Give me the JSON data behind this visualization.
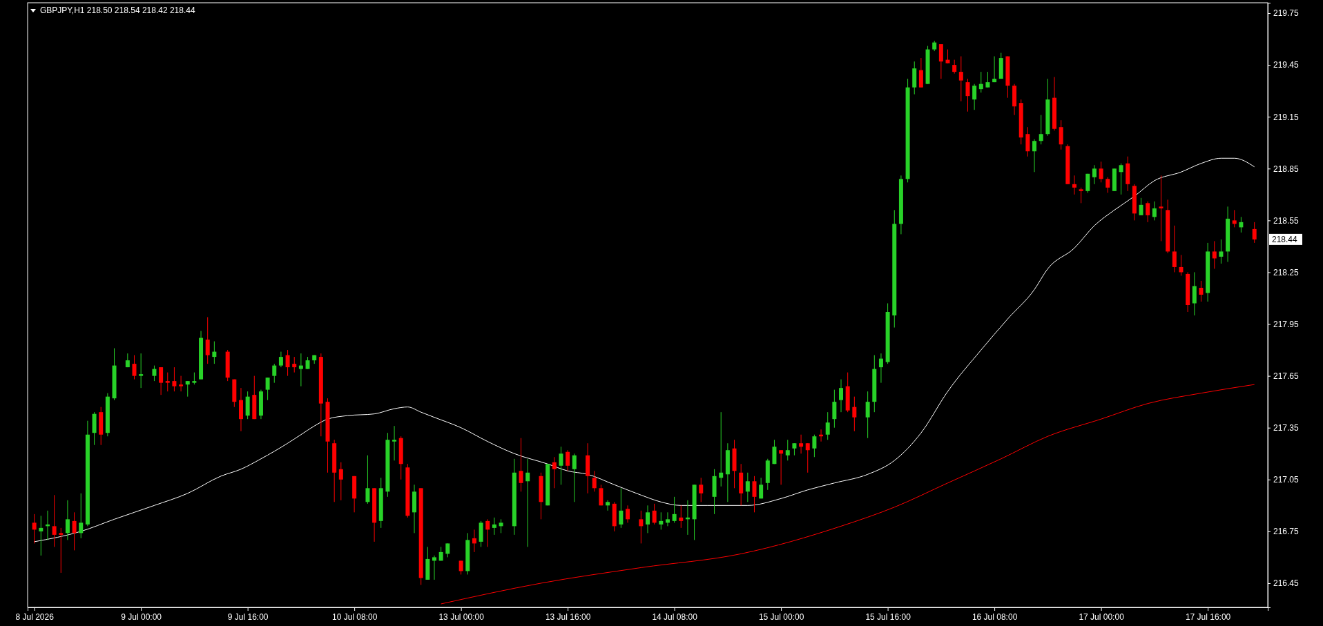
{
  "chart_data": {
    "type": "candlestick",
    "title": "GBPJPY,H1 218.50 218.54 218.42 218.44",
    "categories": [
      "8 Jul 2026",
      null,
      null,
      null,
      null,
      null,
      null,
      null,
      null,
      null,
      null,
      null,
      null,
      null,
      null,
      null,
      "9 Jul 00:00",
      null,
      null,
      null,
      null,
      null,
      null,
      null,
      null,
      null,
      null,
      null,
      null,
      null,
      null,
      null,
      "9 Jul 16:00",
      null,
      null,
      null,
      null,
      null,
      null,
      null,
      null,
      null,
      null,
      null,
      null,
      null,
      null,
      null,
      "10 Jul 08:00",
      null,
      null,
      null,
      null,
      null,
      null,
      null,
      null,
      null,
      null,
      null,
      null,
      null,
      null,
      null,
      "13 Jul 00:00",
      null,
      null,
      null,
      null,
      null,
      null,
      null,
      null,
      null,
      null,
      null,
      null,
      null,
      null,
      null,
      "13 Jul 16:00",
      null,
      null,
      null,
      null,
      null,
      null,
      null,
      null,
      null,
      null,
      null,
      null,
      null,
      null,
      null,
      "14 Jul 08:00",
      null,
      null,
      null,
      null,
      null,
      null,
      null,
      null,
      null,
      null,
      null,
      null,
      null,
      null,
      null,
      "15 Jul 00:00",
      null,
      null,
      null,
      null,
      null,
      null,
      null,
      null,
      null,
      null,
      null,
      null,
      null,
      null,
      null,
      "15 Jul 16:00",
      null,
      null,
      null,
      null,
      null,
      null,
      null,
      null,
      null,
      null,
      null,
      null,
      null,
      null,
      null,
      "16 Jul 08:00",
      null,
      null,
      null,
      null,
      null,
      null,
      null,
      null,
      null,
      null,
      null,
      null,
      null,
      null,
      null,
      "17 Jul 00:00",
      null,
      null,
      null,
      null,
      null,
      null,
      null,
      null,
      null,
      null,
      null,
      null,
      null,
      null,
      null,
      "17 Jul 16:00",
      null,
      null,
      null,
      null,
      null,
      null,
      null
    ],
    "ohlc": [
      [
        216.8,
        216.85,
        216.68,
        216.76
      ],
      [
        216.75,
        216.84,
        216.61,
        216.77
      ],
      [
        216.78,
        216.87,
        216.7,
        216.79
      ],
      [
        216.78,
        216.96,
        216.66,
        216.73
      ],
      [
        216.74,
        216.77,
        216.51,
        216.73
      ],
      [
        216.74,
        216.93,
        216.7,
        216.82
      ],
      [
        216.81,
        216.86,
        216.64,
        216.74
      ],
      [
        216.74,
        216.97,
        216.71,
        216.8
      ],
      [
        216.79,
        217.39,
        216.78,
        217.31
      ],
      [
        217.32,
        217.44,
        217.25,
        217.43
      ],
      [
        217.44,
        217.47,
        217.25,
        217.31
      ],
      [
        217.32,
        217.55,
        217.3,
        217.53
      ],
      [
        217.52,
        217.81,
        217.51,
        217.71
      ],
      null,
      [
        217.7,
        217.78,
        217.7,
        217.74
      ],
      [
        217.72,
        217.77,
        217.63,
        217.65
      ],
      [
        217.65,
        217.78,
        217.58,
        217.66
      ],
      null,
      [
        217.65,
        217.71,
        217.62,
        217.69
      ],
      [
        217.7,
        217.7,
        217.54,
        217.61
      ],
      [
        217.62,
        217.67,
        217.56,
        217.61
      ],
      [
        217.62,
        217.7,
        217.56,
        217.59
      ],
      [
        217.6,
        217.65,
        217.56,
        217.59
      ],
      [
        217.6,
        217.62,
        217.53,
        217.62
      ],
      [
        217.61,
        217.67,
        217.6,
        217.62
      ],
      [
        217.63,
        217.91,
        217.63,
        217.87
      ],
      [
        217.86,
        217.99,
        217.72,
        217.77
      ],
      [
        217.76,
        217.85,
        217.72,
        217.79
      ],
      null,
      [
        217.79,
        217.8,
        217.62,
        217.64
      ],
      [
        217.63,
        217.63,
        217.47,
        217.5
      ],
      [
        217.51,
        217.58,
        217.33,
        217.4
      ],
      [
        217.42,
        217.56,
        217.4,
        217.53
      ],
      [
        217.54,
        217.65,
        217.4,
        217.4
      ],
      [
        217.42,
        217.57,
        217.4,
        217.56
      ],
      [
        217.57,
        217.64,
        217.51,
        217.64
      ],
      [
        217.65,
        217.72,
        217.61,
        217.71
      ],
      [
        217.71,
        217.79,
        217.7,
        217.76
      ],
      [
        217.77,
        217.8,
        217.65,
        217.7
      ],
      [
        217.72,
        217.76,
        217.67,
        217.7
      ],
      [
        217.69,
        217.78,
        217.59,
        217.71
      ],
      [
        217.69,
        217.76,
        217.69,
        217.74
      ],
      [
        217.74,
        217.77,
        217.72,
        217.77
      ],
      [
        217.76,
        217.78,
        217.3,
        217.49
      ],
      [
        217.5,
        217.52,
        217.09,
        217.27
      ],
      [
        217.26,
        217.28,
        216.92,
        217.09
      ],
      [
        217.11,
        217.15,
        216.93,
        217.05
      ],
      null,
      [
        217.07,
        217.07,
        216.86,
        216.94
      ],
      null,
      [
        216.92,
        217.19,
        216.91,
        217.0
      ],
      [
        217.0,
        217.0,
        216.69,
        216.8
      ],
      [
        216.81,
        217.06,
        216.77,
        217.0
      ],
      [
        216.98,
        217.32,
        216.95,
        217.28
      ],
      [
        217.27,
        217.36,
        217.16,
        217.28
      ],
      [
        217.29,
        217.3,
        217.05,
        217.14
      ],
      [
        217.12,
        217.14,
        216.83,
        216.84
      ],
      [
        216.86,
        217.02,
        216.74,
        216.98
      ],
      [
        217.0,
        217.0,
        216.44,
        216.48
      ],
      [
        216.47,
        216.66,
        216.47,
        216.59
      ],
      [
        216.58,
        216.61,
        216.47,
        216.6
      ],
      [
        216.58,
        216.66,
        216.58,
        216.63
      ],
      [
        216.62,
        216.68,
        216.6,
        216.68
      ],
      null,
      [
        216.58,
        216.58,
        216.5,
        216.52
      ],
      [
        216.52,
        216.74,
        216.5,
        216.7
      ],
      [
        216.71,
        216.76,
        216.63,
        216.68
      ],
      [
        216.69,
        216.81,
        216.66,
        216.8
      ],
      [
        216.81,
        216.82,
        216.66,
        216.76
      ],
      [
        216.77,
        216.83,
        216.73,
        216.79
      ],
      [
        216.78,
        216.82,
        216.74,
        216.8
      ],
      null,
      [
        216.78,
        217.17,
        216.73,
        217.09
      ],
      [
        217.1,
        217.29,
        216.98,
        217.03
      ],
      [
        217.04,
        217.17,
        216.66,
        217.09
      ],
      null,
      [
        217.07,
        217.09,
        216.82,
        216.92
      ],
      [
        216.9,
        217.14,
        216.9,
        217.14
      ],
      [
        217.15,
        217.18,
        217.0,
        217.11
      ],
      [
        217.13,
        217.24,
        217.02,
        217.2
      ],
      [
        217.21,
        217.22,
        217.1,
        217.13
      ],
      [
        217.11,
        217.2,
        216.92,
        217.19
      ],
      null,
      [
        217.19,
        217.26,
        216.97,
        217.07
      ],
      [
        217.06,
        217.1,
        216.98,
        217.0
      ],
      [
        217.0,
        217.02,
        216.9,
        216.9
      ],
      [
        216.9,
        216.93,
        216.87,
        216.92
      ],
      [
        216.91,
        216.92,
        216.75,
        216.78
      ],
      [
        216.79,
        217.0,
        216.77,
        216.87
      ],
      [
        216.88,
        216.9,
        216.8,
        216.82
      ],
      null,
      [
        216.82,
        216.87,
        216.68,
        216.78
      ],
      [
        216.79,
        216.9,
        216.74,
        216.86
      ],
      [
        216.87,
        216.91,
        216.79,
        216.8
      ],
      [
        216.79,
        216.86,
        216.76,
        216.81
      ],
      [
        216.8,
        216.86,
        216.78,
        216.82
      ],
      [
        216.81,
        216.95,
        216.8,
        216.85
      ],
      [
        216.83,
        216.9,
        216.77,
        216.81
      ],
      [
        216.82,
        216.93,
        216.73,
        216.83
      ],
      [
        216.82,
        217.02,
        216.7,
        217.02
      ],
      [
        217.02,
        217.06,
        216.92,
        216.97
      ],
      null,
      [
        216.95,
        217.11,
        216.85,
        217.07
      ],
      [
        217.06,
        217.44,
        217.01,
        217.09
      ],
      [
        217.08,
        217.26,
        216.92,
        217.22
      ],
      [
        217.23,
        217.28,
        217.0,
        217.1
      ],
      [
        217.09,
        217.14,
        216.9,
        216.97
      ],
      [
        216.98,
        217.09,
        216.92,
        217.04
      ],
      [
        217.04,
        217.07,
        216.86,
        216.95
      ],
      [
        216.94,
        217.06,
        216.94,
        217.02
      ],
      [
        217.03,
        217.17,
        216.99,
        217.16
      ],
      [
        217.14,
        217.28,
        217.14,
        217.24
      ],
      [
        217.22,
        217.22,
        217.02,
        217.2
      ],
      [
        217.19,
        217.28,
        217.16,
        217.22
      ],
      [
        217.23,
        217.26,
        217.19,
        217.26
      ],
      [
        217.26,
        217.31,
        217.2,
        217.24
      ],
      [
        217.26,
        217.26,
        217.09,
        217.22
      ],
      [
        217.23,
        217.31,
        217.18,
        217.3
      ],
      [
        217.31,
        217.34,
        217.27,
        217.3
      ],
      [
        217.31,
        217.44,
        217.28,
        217.38
      ],
      [
        217.4,
        217.57,
        217.35,
        217.5
      ],
      [
        217.51,
        217.63,
        217.44,
        217.58
      ],
      [
        217.59,
        217.67,
        217.44,
        217.45
      ],
      [
        217.47,
        217.53,
        217.33,
        217.41
      ],
      null,
      [
        217.41,
        217.56,
        217.29,
        217.5
      ],
      [
        217.5,
        217.77,
        217.44,
        217.69
      ],
      [
        217.7,
        217.78,
        217.61,
        217.75
      ],
      [
        217.73,
        218.07,
        217.72,
        218.02
      ],
      [
        218.0,
        218.61,
        217.93,
        218.53
      ],
      [
        218.53,
        218.81,
        218.47,
        218.79
      ],
      [
        218.79,
        219.37,
        218.77,
        219.32
      ],
      [
        219.32,
        219.47,
        219.28,
        219.43
      ],
      [
        219.42,
        219.49,
        219.32,
        219.32
      ],
      [
        219.34,
        219.56,
        219.34,
        219.54
      ],
      [
        219.54,
        219.59,
        219.53,
        219.58
      ],
      [
        219.57,
        219.57,
        219.37,
        219.47
      ],
      [
        219.48,
        219.54,
        219.46,
        219.46
      ],
      [
        219.45,
        219.48,
        219.4,
        219.41
      ],
      [
        219.41,
        219.5,
        219.24,
        219.36
      ],
      [
        219.35,
        219.37,
        219.18,
        219.27
      ],
      [
        219.25,
        219.34,
        219.19,
        219.33
      ],
      [
        219.31,
        219.41,
        219.29,
        219.34
      ],
      [
        219.32,
        219.41,
        219.32,
        219.35
      ],
      [
        219.35,
        219.5,
        219.35,
        219.37
      ],
      [
        219.37,
        219.52,
        219.37,
        219.49
      ],
      [
        219.5,
        219.5,
        219.26,
        219.33
      ],
      [
        219.33,
        219.34,
        219.16,
        219.21
      ],
      [
        219.23,
        219.25,
        218.99,
        219.03
      ],
      [
        219.05,
        219.09,
        218.92,
        218.95
      ],
      [
        218.95,
        219.02,
        218.83,
        219.01
      ],
      [
        219.01,
        219.16,
        218.99,
        219.05
      ],
      [
        219.05,
        219.37,
        219.04,
        219.25
      ],
      [
        219.26,
        219.38,
        219.07,
        219.08
      ],
      [
        219.09,
        219.13,
        218.96,
        218.99
      ],
      [
        218.98,
        218.99,
        218.76,
        218.76
      ],
      [
        218.76,
        218.81,
        218.7,
        218.74
      ],
      [
        218.73,
        218.74,
        218.65,
        218.72
      ],
      [
        218.72,
        218.82,
        218.71,
        218.82
      ],
      [
        218.8,
        218.87,
        218.76,
        218.85
      ],
      [
        218.85,
        218.89,
        218.77,
        218.79
      ],
      [
        218.79,
        218.8,
        218.71,
        218.74
      ],
      [
        218.72,
        218.85,
        218.72,
        218.85
      ],
      [
        218.83,
        218.88,
        218.7,
        218.87
      ],
      [
        218.88,
        218.92,
        218.72,
        218.76
      ],
      [
        218.75,
        218.76,
        218.55,
        218.59
      ],
      [
        218.58,
        218.68,
        218.58,
        218.64
      ],
      [
        218.65,
        218.66,
        218.54,
        218.58
      ],
      [
        218.57,
        218.66,
        218.55,
        218.62
      ],
      [
        218.63,
        218.81,
        218.43,
        218.62
      ],
      [
        218.61,
        218.67,
        218.36,
        218.37
      ],
      [
        218.37,
        218.52,
        218.25,
        218.28
      ],
      [
        218.28,
        218.35,
        218.23,
        218.25
      ],
      [
        218.24,
        218.25,
        218.02,
        218.06
      ],
      [
        218.07,
        218.25,
        218.0,
        218.17
      ],
      [
        218.16,
        218.2,
        218.08,
        218.12
      ],
      [
        218.13,
        218.42,
        218.08,
        218.37
      ],
      [
        218.37,
        218.43,
        218.27,
        218.33
      ],
      [
        218.34,
        218.44,
        218.3,
        218.37
      ],
      [
        218.37,
        218.63,
        218.31,
        218.56
      ],
      [
        218.55,
        218.61,
        218.51,
        218.53
      ],
      [
        218.51,
        218.57,
        218.48,
        218.54
      ],
      null,
      [
        218.5,
        218.54,
        218.42,
        218.44
      ]
    ],
    "series": [
      {
        "type": "line",
        "color": "#ffffff",
        "values": [
          216.69,
          null,
          null,
          null,
          null,
          null,
          null,
          216.75,
          null,
          null,
          null,
          null,
          216.82,
          null,
          null,
          null,
          null,
          null,
          216.9,
          null,
          null,
          null,
          null,
          216.97,
          null,
          null,
          null,
          null,
          217.07,
          null,
          null,
          217.11,
          null,
          null,
          217.17,
          null,
          null,
          null,
          217.26,
          null,
          217.31,
          null,
          217.36,
          null,
          217.4,
          null,
          null,
          217.42,
          null,
          null,
          null,
          217.43,
          null,
          null,
          217.46,
          null,
          217.47,
          null,
          217.44,
          null,
          217.41,
          null,
          null,
          null,
          217.35,
          null,
          null,
          null,
          217.27,
          null,
          null,
          null,
          217.2,
          null,
          null,
          null,
          null,
          217.14,
          null,
          null,
          217.1,
          null,
          null,
          217.08,
          null,
          null,
          null,
          217.02,
          null,
          null,
          null,
          216.96,
          null,
          null,
          216.92,
          null,
          null,
          216.9,
          null,
          null,
          null,
          216.9,
          null,
          null,
          null,
          null,
          null,
          216.9,
          null,
          null,
          null,
          null,
          216.94,
          null,
          null,
          null,
          216.99,
          null,
          null,
          null,
          217.03,
          null,
          null,
          null,
          null,
          217.08,
          null,
          null,
          null,
          217.16,
          null,
          null,
          null,
          217.32,
          null,
          null,
          null,
          217.56,
          null,
          null,
          null,
          null,
          217.8,
          null,
          null,
          null,
          217.98,
          null,
          null,
          null,
          218.15,
          null,
          218.27,
          null,
          null,
          null,
          218.39,
          null,
          null,
          218.52,
          null,
          null,
          218.61,
          null,
          null,
          218.69,
          null,
          null,
          218.78,
          null,
          null,
          null,
          218.83,
          null,
          null,
          218.88,
          null,
          null,
          218.91,
          null,
          218.91,
          null,
          null,
          218.86
        ]
      },
      {
        "type": "line",
        "color": "#ff0000",
        "values": [
          null,
          null,
          null,
          null,
          null,
          null,
          null,
          null,
          null,
          null,
          null,
          null,
          null,
          null,
          null,
          null,
          null,
          null,
          null,
          null,
          null,
          null,
          null,
          null,
          null,
          null,
          null,
          null,
          null,
          null,
          null,
          null,
          null,
          null,
          null,
          null,
          null,
          null,
          null,
          null,
          null,
          null,
          null,
          null,
          null,
          null,
          null,
          null,
          null,
          null,
          null,
          null,
          null,
          null,
          null,
          null,
          null,
          null,
          null,
          null,
          null,
          216.33,
          null,
          null,
          null,
          null,
          null,
          null,
          null,
          null,
          null,
          null,
          null,
          null,
          null,
          null,
          216.45,
          null,
          null,
          null,
          null,
          null,
          null,
          null,
          null,
          null,
          null,
          null,
          null,
          null,
          null,
          216.54,
          null,
          null,
          null,
          null,
          null,
          null,
          null,
          null,
          null,
          null,
          null,
          null,
          null,
          null,
          216.62,
          null,
          null,
          null,
          null,
          null,
          null,
          null,
          null,
          null,
          null,
          null,
          null,
          null,
          null,
          216.78,
          null,
          null,
          null,
          null,
          null,
          null,
          null,
          216.89,
          null,
          null,
          null,
          null,
          null,
          null,
          null,
          217.03,
          null,
          null,
          null,
          null,
          null,
          null,
          null,
          217.17,
          null,
          null,
          null,
          null,
          null,
          null,
          217.3,
          null,
          null,
          null,
          null,
          null,
          null,
          null,
          217.4,
          null,
          null,
          null,
          null,
          null,
          null,
          217.49,
          null,
          null,
          null,
          null,
          null,
          null,
          null,
          217.55,
          null,
          null,
          null,
          null,
          null,
          null,
          null,
          217.6
        ]
      }
    ],
    "ylim": [
      216.31,
      219.81
    ],
    "yticks": [
      219.75,
      219.45,
      219.15,
      218.85,
      218.55,
      218.25,
      217.95,
      217.65,
      217.35,
      217.05,
      216.75,
      216.45
    ],
    "annotations": [
      "218.44"
    ]
  }
}
